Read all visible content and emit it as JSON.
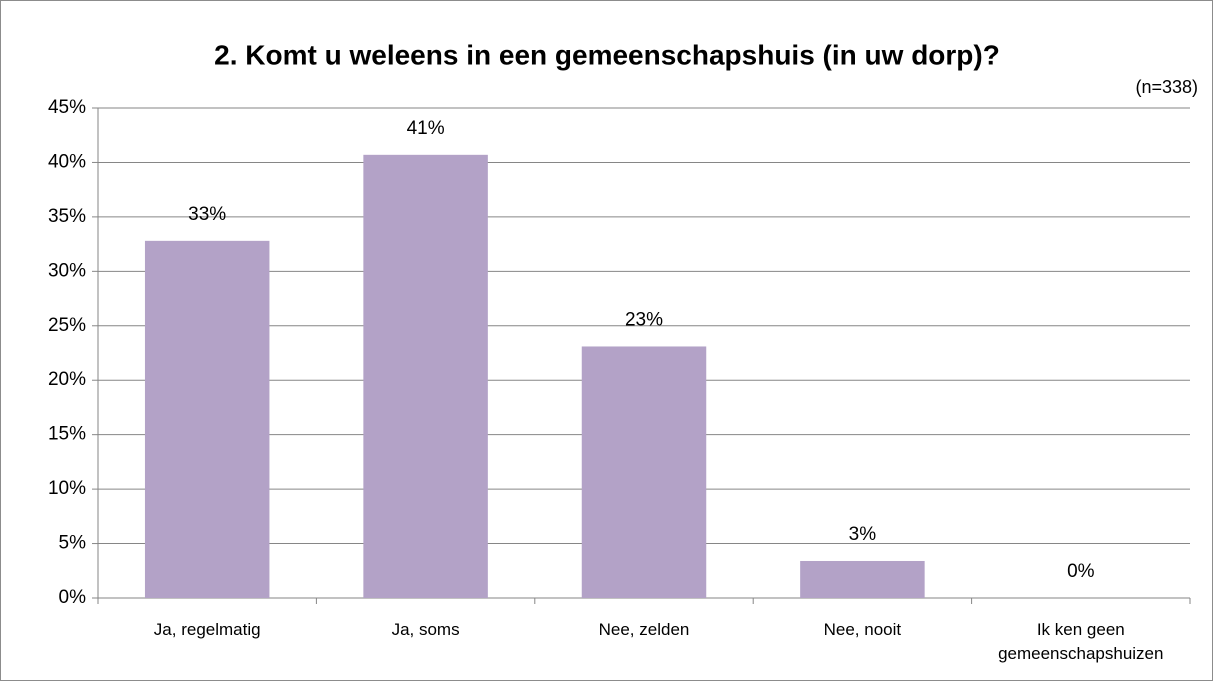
{
  "chart_data": {
    "type": "bar",
    "title": "2. Komt u weleens in een gemeenschapshuis (in uw dorp)?",
    "subtitle": "(n=338)",
    "categories": [
      "Ja, regelmatig",
      "Ja, soms",
      "Nee, zelden",
      "Nee, nooit",
      "Ik ken geen gemeenschapshuizen"
    ],
    "values": [
      32.8,
      40.7,
      23.1,
      3.4,
      0
    ],
    "value_labels": [
      "33%",
      "41%",
      "23%",
      "3%",
      "0%"
    ],
    "color": "#b3a2c7",
    "ylim": [
      0,
      45
    ],
    "yticks": [
      {
        "value": 0,
        "label": "0%"
      },
      {
        "value": 5,
        "label": "5%"
      },
      {
        "value": 10,
        "label": "10%"
      },
      {
        "value": 15,
        "label": "15%"
      },
      {
        "value": 20,
        "label": "20%"
      },
      {
        "value": 25,
        "label": "25%"
      },
      {
        "value": 30,
        "label": "30%"
      },
      {
        "value": 35,
        "label": "35%"
      },
      {
        "value": 40,
        "label": "40%"
      },
      {
        "value": 45,
        "label": "45%"
      }
    ],
    "grid": true
  }
}
